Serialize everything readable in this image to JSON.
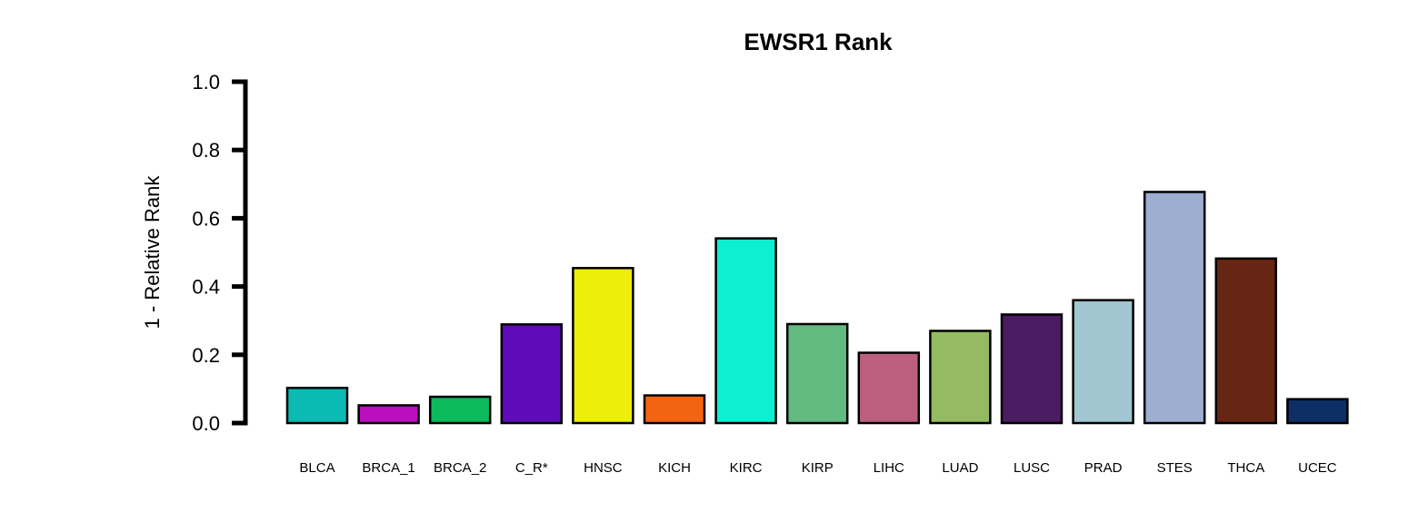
{
  "chart_data": {
    "type": "bar",
    "title": "EWSR1 Rank",
    "xlabel": "",
    "ylabel": "1 - Relative Rank",
    "ylim": [
      0,
      1
    ],
    "yticks": [
      0,
      0.2,
      0.4,
      0.6,
      0.8,
      1
    ],
    "ytick_labels": [
      "0.0",
      "0.2",
      "0.4",
      "0.6",
      "0.8",
      "1.0"
    ],
    "grid": false,
    "legend": "none",
    "categories": [
      "BLCA",
      "BRCA_1",
      "BRCA_2",
      "C_R*",
      "HNSC",
      "KICH",
      "KIRC",
      "KIRP",
      "LIHC",
      "LUAD",
      "LUSC",
      "PRAD",
      "STES",
      "THCA",
      "UCEC"
    ],
    "values": [
      0.103,
      0.052,
      0.077,
      0.289,
      0.454,
      0.081,
      0.541,
      0.29,
      0.206,
      0.27,
      0.318,
      0.36,
      0.677,
      0.482,
      0.07
    ],
    "colors": [
      "#0BBAB3",
      "#BB0EBE",
      "#0BBA5B",
      "#5E0BBA",
      "#EDEE0B",
      "#F26412",
      "#0DEFD1",
      "#62BA80",
      "#BC5F7F",
      "#95BB62",
      "#4B1C61",
      "#A1C5D1",
      "#9EAED1",
      "#672513",
      "#0E2F66"
    ]
  }
}
